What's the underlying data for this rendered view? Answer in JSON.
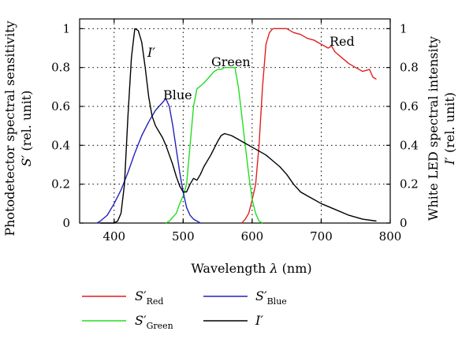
{
  "chart_data": {
    "type": "line",
    "xlabel": "Wavelength",
    "xlabel_symbol": "λ",
    "xlabel_unit": "(nm)",
    "ylabel_left_line1": "Photodetector spectral sensitivity",
    "ylabel_left_line2_symbol": "S′",
    "ylabel_left_line2_unit": "(rel. unit)",
    "ylabel_right_line1": "White LED spectral intensity",
    "ylabel_right_line2_symbol": "I′",
    "ylabel_right_line2_unit": "(rel. unit)",
    "xlim": [
      350,
      800
    ],
    "ylim": [
      0,
      1.05
    ],
    "y2lim": [
      0,
      1.05
    ],
    "x_ticks": [
      "400",
      "500",
      "600",
      "700",
      "800"
    ],
    "x_tick_values": [
      400,
      500,
      600,
      700,
      800
    ],
    "y_ticks": [
      "0",
      "0.2",
      "0.4",
      "0.6",
      "0.8",
      "1"
    ],
    "y_tick_values": [
      0,
      0.2,
      0.4,
      0.6,
      0.8,
      1.0
    ],
    "y2_ticks": [
      "0",
      "0.2",
      "0.4",
      "0.6",
      "0.8",
      "1"
    ],
    "grid": "dotted",
    "annotations": [
      {
        "text": "Red",
        "series": "S_Red"
      },
      {
        "text": "Green",
        "series": "S_Green"
      },
      {
        "text": "Blue",
        "series": "S_Blue"
      },
      {
        "text": "I′",
        "series": "I"
      }
    ],
    "series": [
      {
        "name": "S′Red",
        "key": "S_Red",
        "color": "#e02020",
        "x": [
          585,
          590,
          595,
          600,
          605,
          610,
          615,
          620,
          625,
          630,
          635,
          640,
          650,
          660,
          670,
          680,
          690,
          700,
          710,
          715,
          720,
          730,
          740,
          750,
          760,
          770,
          775,
          780
        ],
        "y": [
          0.0,
          0.02,
          0.05,
          0.12,
          0.2,
          0.4,
          0.7,
          0.92,
          0.98,
          1.0,
          1.0,
          1.0,
          1.0,
          0.98,
          0.97,
          0.95,
          0.94,
          0.92,
          0.9,
          0.91,
          0.88,
          0.85,
          0.82,
          0.8,
          0.78,
          0.79,
          0.75,
          0.74
        ]
      },
      {
        "name": "S′Green",
        "key": "S_Green",
        "color": "#22dd22",
        "x": [
          475,
          480,
          485,
          490,
          495,
          500,
          505,
          510,
          515,
          520,
          530,
          540,
          545,
          550,
          555,
          560,
          565,
          570,
          575,
          580,
          585,
          590,
          595,
          600,
          605,
          610,
          615
        ],
        "y": [
          0.0,
          0.01,
          0.03,
          0.05,
          0.1,
          0.14,
          0.2,
          0.4,
          0.6,
          0.69,
          0.72,
          0.76,
          0.78,
          0.79,
          0.79,
          0.8,
          0.8,
          0.8,
          0.8,
          0.7,
          0.55,
          0.4,
          0.25,
          0.12,
          0.05,
          0.01,
          0.0
        ]
      },
      {
        "name": "S′Blue",
        "key": "S_Blue",
        "color": "#2222bb",
        "x": [
          375,
          380,
          390,
          400,
          410,
          420,
          430,
          440,
          450,
          460,
          470,
          475,
          480,
          485,
          490,
          495,
          500,
          505,
          510,
          515,
          520,
          525
        ],
        "y": [
          0.0,
          0.01,
          0.04,
          0.1,
          0.17,
          0.26,
          0.36,
          0.45,
          0.52,
          0.58,
          0.62,
          0.64,
          0.6,
          0.5,
          0.38,
          0.26,
          0.16,
          0.08,
          0.04,
          0.02,
          0.01,
          0.0
        ]
      },
      {
        "name": "I′",
        "key": "I",
        "color": "#000000",
        "x": [
          380,
          390,
          395,
          400,
          405,
          410,
          415,
          420,
          425,
          430,
          435,
          440,
          445,
          450,
          455,
          460,
          465,
          470,
          475,
          480,
          485,
          490,
          495,
          500,
          505,
          510,
          515,
          520,
          525,
          530,
          540,
          550,
          555,
          560,
          570,
          580,
          590,
          600,
          610,
          620,
          630,
          640,
          650,
          660,
          670,
          680,
          690,
          700,
          720,
          740,
          760,
          780
        ],
        "y": [
          0.0,
          0.0,
          0.0,
          0.0,
          0.01,
          0.05,
          0.2,
          0.55,
          0.85,
          1.0,
          0.99,
          0.93,
          0.8,
          0.65,
          0.55,
          0.5,
          0.47,
          0.44,
          0.4,
          0.35,
          0.3,
          0.24,
          0.19,
          0.16,
          0.16,
          0.2,
          0.23,
          0.22,
          0.25,
          0.29,
          0.35,
          0.42,
          0.45,
          0.46,
          0.45,
          0.43,
          0.41,
          0.39,
          0.37,
          0.35,
          0.32,
          0.29,
          0.25,
          0.2,
          0.16,
          0.14,
          0.12,
          0.1,
          0.07,
          0.04,
          0.02,
          0.01
        ]
      }
    ],
    "legend": [
      {
        "symbol": "S′",
        "sub": "Red",
        "color": "#e02020"
      },
      {
        "symbol": "S′",
        "sub": "Green",
        "color": "#22dd22"
      },
      {
        "symbol": "S′",
        "sub": "Blue",
        "color": "#2222bb"
      },
      {
        "symbol": "I′",
        "sub": "",
        "color": "#000000"
      }
    ]
  }
}
